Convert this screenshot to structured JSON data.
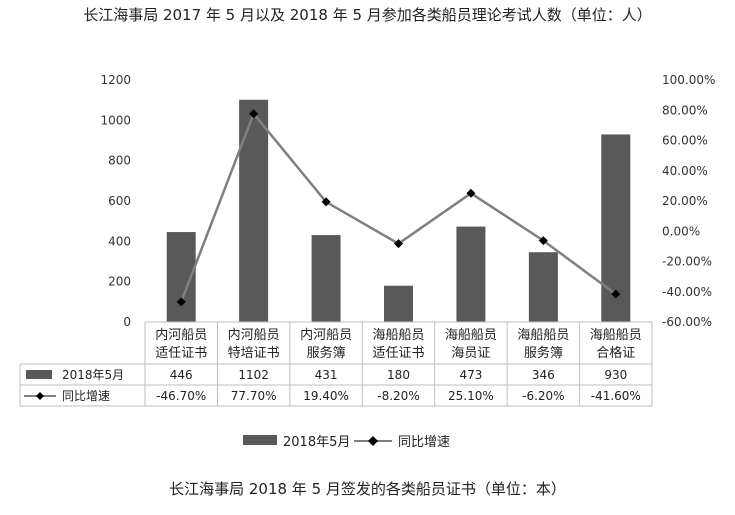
{
  "title": "长江海事局 2017 年 5 月以及 2018 年 5 月参加各类船员理论考试人数（单位：人）",
  "caption": "长江海事局 2018 年 5 月签发的各类船员证书（单位：本）",
  "colors": {
    "bar": "#595959",
    "line": "#7f7f7f",
    "marker": "#000000",
    "grid": "#bfbfbf"
  },
  "chart_data": {
    "type": "bar",
    "categories": [
      [
        "内河船员",
        "适任证书"
      ],
      [
        "内河船员",
        "特培证书"
      ],
      [
        "内河船员",
        "服务簿"
      ],
      [
        "海船船员",
        "适任证书"
      ],
      [
        "海船船员",
        "海员证"
      ],
      [
        "海船船员",
        "服务簿"
      ],
      [
        "海船船员",
        "合格证"
      ]
    ],
    "series": [
      {
        "name": "2018年5月",
        "kind": "bar",
        "axis": "left",
        "values": [
          446,
          1102,
          431,
          180,
          473,
          346,
          930
        ],
        "labels": [
          "446",
          "1102",
          "431",
          "180",
          "473",
          "346",
          "930"
        ]
      },
      {
        "name": "同比增速",
        "kind": "line",
        "axis": "right",
        "values": [
          -46.7,
          77.7,
          19.4,
          -8.2,
          25.1,
          -6.2,
          -41.6
        ],
        "labels": [
          "-46.70%",
          "77.70%",
          "19.40%",
          "-8.20%",
          "25.10%",
          "-6.20%",
          "-41.60%"
        ]
      }
    ],
    "ylim_left": [
      0,
      1200
    ],
    "left_ticks": [
      "0",
      "200",
      "400",
      "600",
      "800",
      "1000",
      "1200"
    ],
    "ylim_right": [
      -60,
      100
    ],
    "right_ticks": [
      "-60.00%",
      "-40.00%",
      "-20.00%",
      "0.00%",
      "20.00%",
      "40.00%",
      "60.00%",
      "80.00%",
      "100.00%"
    ],
    "data_table": true,
    "grid": false,
    "legend_position": "bottom",
    "legend": [
      "2018年5月",
      "同比增速"
    ]
  }
}
